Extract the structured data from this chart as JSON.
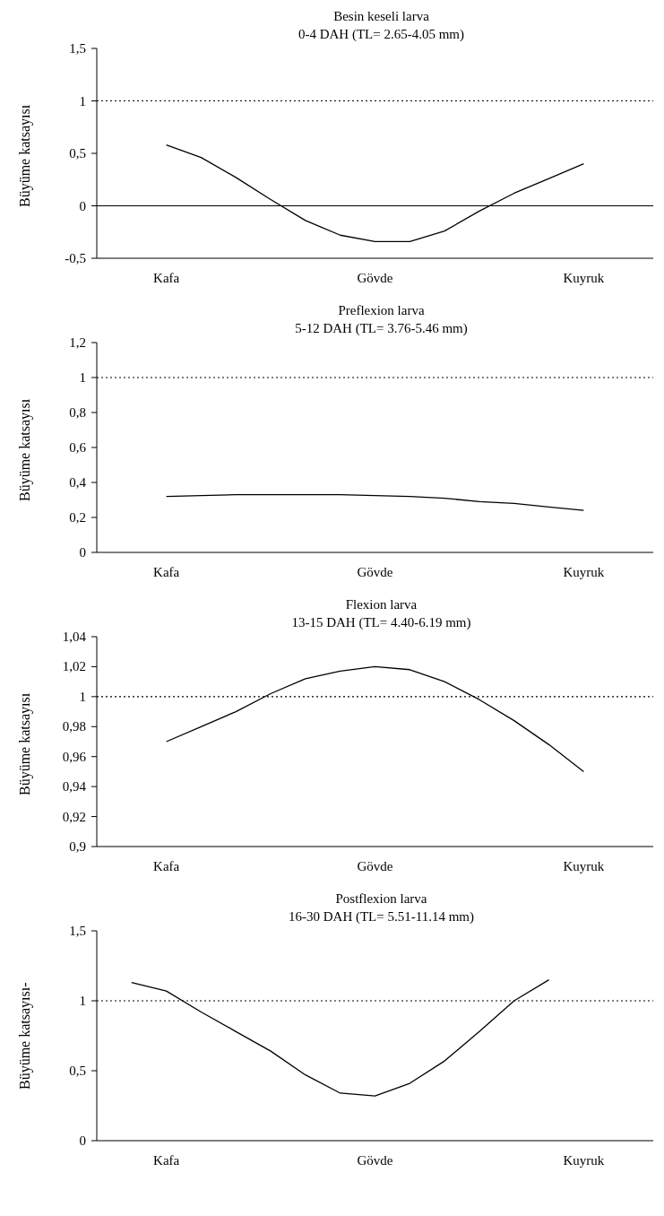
{
  "chart_data": [
    {
      "type": "line",
      "title": "Besin keseli larva",
      "subtitle": "0-4 DAH (TL= 2.65-4.05 mm)",
      "ylabel": "Büyüme katsayısı",
      "categories": [
        null,
        null,
        "Kafa",
        null,
        null,
        null,
        null,
        null,
        "Gövde",
        null,
        null,
        null,
        null,
        null,
        "Kuyruk",
        null,
        null
      ],
      "series": [
        {
          "color": "#000000",
          "values": [
            null,
            null,
            0.58,
            0.46,
            0.27,
            0.06,
            -0.14,
            -0.28,
            -0.34,
            -0.34,
            -0.24,
            -0.05,
            0.12,
            0.26,
            0.4,
            null,
            null
          ]
        }
      ],
      "ylim": [
        -0.5,
        1.5
      ],
      "yticks": [
        {
          "value": -0.5,
          "label": "-0,5"
        },
        {
          "value": 0,
          "label": "0"
        },
        {
          "value": 0.5,
          "label": "0,5"
        },
        {
          "value": 1,
          "label": "1"
        },
        {
          "value": 1.5,
          "label": "1,5"
        }
      ],
      "grid": false,
      "legend": false,
      "marker": "none",
      "line_style": "solid",
      "ref_lines": [
        {
          "axis": "y",
          "value": 1,
          "line_style": "dotted",
          "color": "#000000"
        },
        {
          "axis": "y",
          "value": 0,
          "line_style": "solid",
          "color": "#000000"
        }
      ]
    },
    {
      "type": "line",
      "title": "Preflexion larva",
      "subtitle": "5-12 DAH (TL= 3.76-5.46 mm)",
      "ylabel": "Büyüme katsayısı",
      "categories": [
        null,
        null,
        "Kafa",
        null,
        null,
        null,
        null,
        null,
        "Gövde",
        null,
        null,
        null,
        null,
        null,
        "Kuyruk",
        null,
        null
      ],
      "series": [
        {
          "color": "#000000",
          "values": [
            null,
            null,
            0.32,
            0.325,
            0.33,
            0.33,
            0.33,
            0.33,
            0.325,
            0.32,
            0.31,
            0.29,
            0.28,
            0.26,
            0.24,
            null,
            null
          ]
        }
      ],
      "ylim": [
        0,
        1.2
      ],
      "yticks": [
        {
          "value": 0,
          "label": "0"
        },
        {
          "value": 0.2,
          "label": "0,2"
        },
        {
          "value": 0.4,
          "label": "0,4"
        },
        {
          "value": 0.6,
          "label": "0,6"
        },
        {
          "value": 0.8,
          "label": "0,8"
        },
        {
          "value": 1,
          "label": "1"
        },
        {
          "value": 1.2,
          "label": "1,2"
        }
      ],
      "grid": false,
      "legend": false,
      "marker": "none",
      "line_style": "solid",
      "ref_lines": [
        {
          "axis": "y",
          "value": 1,
          "line_style": "dotted",
          "color": "#000000"
        }
      ]
    },
    {
      "type": "line",
      "title": "Flexion larva",
      "subtitle": "13-15 DAH (TL= 4.40-6.19 mm)",
      "ylabel": "Büyüme katsayısı",
      "categories": [
        null,
        null,
        "Kafa",
        null,
        null,
        null,
        null,
        null,
        "Gövde",
        null,
        null,
        null,
        null,
        null,
        "Kuyruk",
        null,
        null
      ],
      "series": [
        {
          "color": "#000000",
          "values": [
            null,
            null,
            0.97,
            0.98,
            0.99,
            1.002,
            1.012,
            1.017,
            1.02,
            1.018,
            1.01,
            0.998,
            0.984,
            0.968,
            0.95,
            null,
            null
          ]
        }
      ],
      "ylim": [
        0.9,
        1.04
      ],
      "yticks": [
        {
          "value": 0.9,
          "label": "0,9"
        },
        {
          "value": 0.92,
          "label": "0,92"
        },
        {
          "value": 0.94,
          "label": "0,94"
        },
        {
          "value": 0.96,
          "label": "0,96"
        },
        {
          "value": 0.98,
          "label": "0,98"
        },
        {
          "value": 1,
          "label": "1"
        },
        {
          "value": 1.02,
          "label": "1,02"
        },
        {
          "value": 1.04,
          "label": "1,04"
        }
      ],
      "grid": false,
      "legend": false,
      "marker": "none",
      "line_style": "solid",
      "ref_lines": [
        {
          "axis": "y",
          "value": 1,
          "line_style": "dotted",
          "color": "#000000"
        }
      ]
    },
    {
      "type": "line",
      "title": "Postflexion larva",
      "subtitle": "16-30 DAH (TL= 5.51-11.14 mm)",
      "ylabel": "Büyüme katsayısı-",
      "categories": [
        null,
        null,
        "Kafa",
        null,
        null,
        null,
        null,
        null,
        "Gövde",
        null,
        null,
        null,
        null,
        null,
        "Kuyruk",
        null,
        null
      ],
      "series": [
        {
          "color": "#000000",
          "values": [
            null,
            1.13,
            1.07,
            0.92,
            0.78,
            0.64,
            0.47,
            0.34,
            0.32,
            0.41,
            0.57,
            0.78,
            1.0,
            1.15,
            null,
            null,
            null
          ]
        }
      ],
      "ylim": [
        0,
        1.5
      ],
      "yticks": [
        {
          "value": 0,
          "label": "0"
        },
        {
          "value": 0.5,
          "label": "0,5"
        },
        {
          "value": 1,
          "label": "1"
        },
        {
          "value": 1.5,
          "label": "1,5"
        }
      ],
      "grid": false,
      "legend": false,
      "marker": "none",
      "line_style": "solid",
      "ref_lines": [
        {
          "axis": "y",
          "value": 1,
          "line_style": "dotted",
          "color": "#000000"
        }
      ]
    }
  ]
}
